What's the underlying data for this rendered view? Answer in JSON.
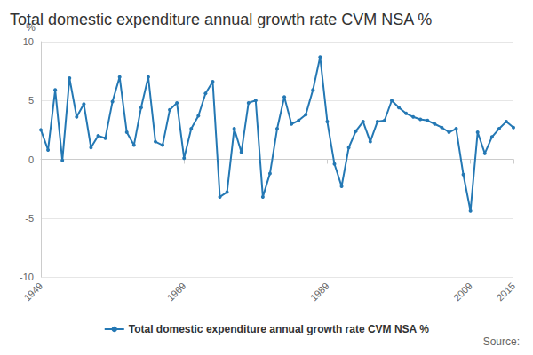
{
  "chart_data": {
    "type": "line",
    "title": "Total domestic expenditure annual growth rate CVM NSA %",
    "y_label": "%",
    "source": "Source:",
    "categories": [
      "1949",
      null,
      null,
      null,
      null,
      null,
      null,
      null,
      null,
      null,
      null,
      null,
      null,
      null,
      null,
      null,
      null,
      null,
      null,
      null,
      "1969",
      null,
      null,
      null,
      null,
      null,
      null,
      null,
      null,
      null,
      null,
      null,
      null,
      null,
      null,
      null,
      null,
      null,
      null,
      null,
      "1989",
      null,
      null,
      null,
      null,
      null,
      null,
      null,
      null,
      null,
      null,
      null,
      null,
      null,
      null,
      null,
      null,
      null,
      null,
      null,
      "2009",
      null,
      null,
      null,
      null,
      null,
      "2015"
    ],
    "series": [
      {
        "name": "Total domestic expenditure annual growth rate CVM NSA %",
        "color": "#2478b4",
        "marker": "circle",
        "values": [
          2.5,
          0.8,
          5.9,
          -0.1,
          6.9,
          3.6,
          4.7,
          1.0,
          2.0,
          1.8,
          4.9,
          7.0,
          2.3,
          1.2,
          4.4,
          7.0,
          1.5,
          1.2,
          4.2,
          4.8,
          0.1,
          2.6,
          3.7,
          5.6,
          6.6,
          -3.2,
          -2.8,
          2.6,
          0.6,
          4.8,
          5.0,
          -3.2,
          -1.2,
          2.6,
          5.3,
          3.0,
          3.3,
          3.8,
          5.9,
          8.7,
          3.2,
          -0.4,
          -2.3,
          1.0,
          2.4,
          3.2,
          1.5,
          3.2,
          3.3,
          5.0,
          4.4,
          3.9,
          3.6,
          3.4,
          3.3,
          3.0,
          2.7,
          2.3,
          2.6,
          -1.3,
          -4.4,
          2.3,
          0.5,
          1.9,
          2.6,
          3.2,
          2.7
        ]
      }
    ],
    "ylim": [
      -10,
      10
    ],
    "yticks": [
      -10,
      -5,
      0,
      5,
      10
    ],
    "grid": true,
    "legend": "bottom"
  }
}
